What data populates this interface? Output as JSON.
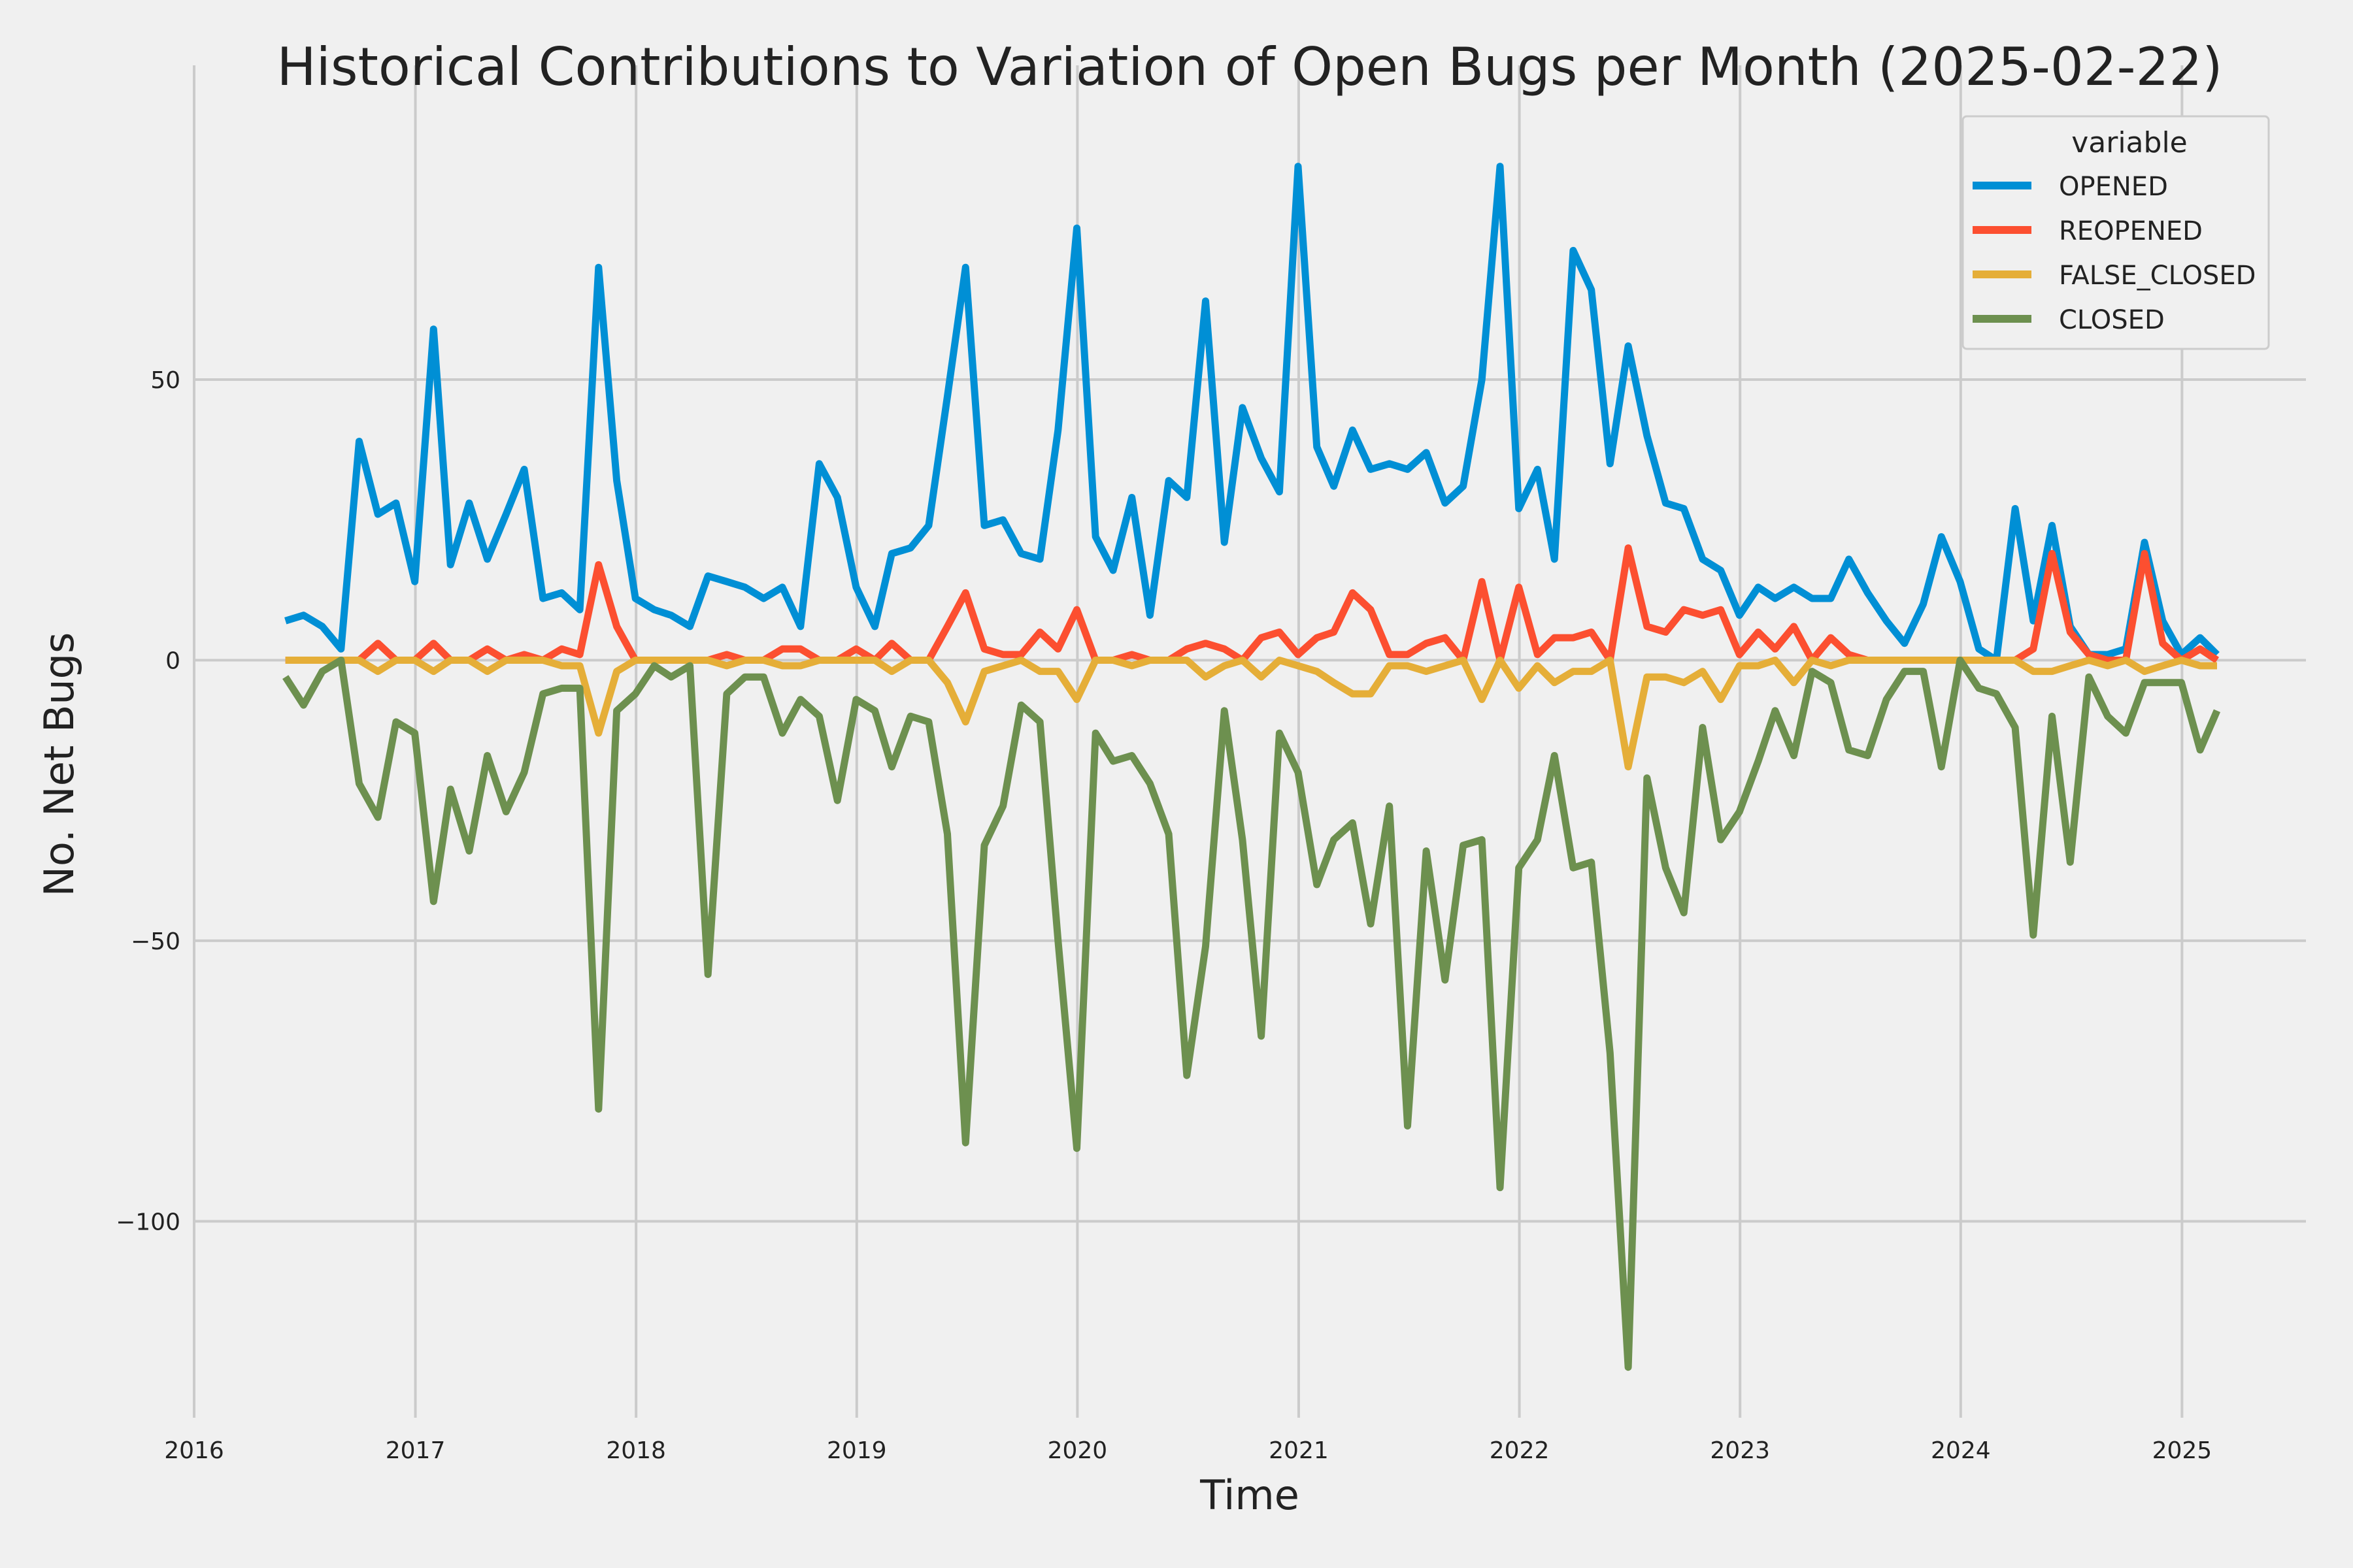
{
  "chart_data": {
    "type": "line",
    "title": "Historical Contributions to Variation of Open Bugs per Month (2025-02-22)",
    "xlabel": "Time",
    "ylabel": "No. Net Bugs",
    "x_ticks": [
      "2016",
      "2017",
      "2018",
      "2019",
      "2020",
      "2021",
      "2022",
      "2023",
      "2024",
      "2025"
    ],
    "y_ticks": [
      {
        "value": 50,
        "label": "50"
      },
      {
        "value": 0,
        "label": "0"
      },
      {
        "value": -50,
        "label": "−50"
      },
      {
        "value": -100,
        "label": "−100"
      }
    ],
    "xlim": [
      "2016-01-01",
      "2025-07-25"
    ],
    "ylim": [
      -135,
      106
    ],
    "grid": true,
    "legend": {
      "title": "variable",
      "placement": "top-right"
    },
    "x": [
      "2016-05",
      "2016-06",
      "2016-07",
      "2016-08",
      "2016-09",
      "2016-10",
      "2016-11",
      "2016-12",
      "2017-01",
      "2017-02",
      "2017-03",
      "2017-04",
      "2017-05",
      "2017-06",
      "2017-07",
      "2017-08",
      "2017-09",
      "2017-10",
      "2017-11",
      "2017-12",
      "2018-01",
      "2018-02",
      "2018-03",
      "2018-04",
      "2018-05",
      "2018-06",
      "2018-07",
      "2018-08",
      "2018-09",
      "2018-10",
      "2018-11",
      "2018-12",
      "2019-01",
      "2019-02",
      "2019-03",
      "2019-04",
      "2019-05",
      "2019-06",
      "2019-07",
      "2019-08",
      "2019-09",
      "2019-10",
      "2019-11",
      "2019-12",
      "2020-01",
      "2020-02",
      "2020-03",
      "2020-04",
      "2020-05",
      "2020-06",
      "2020-07",
      "2020-08",
      "2020-09",
      "2020-10",
      "2020-11",
      "2020-12",
      "2021-01",
      "2021-02",
      "2021-03",
      "2021-04",
      "2021-05",
      "2021-06",
      "2021-07",
      "2021-08",
      "2021-09",
      "2021-10",
      "2021-11",
      "2021-12",
      "2022-01",
      "2022-02",
      "2022-03",
      "2022-04",
      "2022-05",
      "2022-06",
      "2022-07",
      "2022-08",
      "2022-09",
      "2022-10",
      "2022-11",
      "2022-12",
      "2023-01",
      "2023-02",
      "2023-03",
      "2023-04",
      "2023-05",
      "2023-06",
      "2023-07",
      "2023-08",
      "2023-09",
      "2023-10",
      "2023-11",
      "2023-12",
      "2024-01",
      "2024-02",
      "2024-03",
      "2024-04",
      "2024-05",
      "2024-06",
      "2024-07",
      "2024-08",
      "2024-09",
      "2024-10",
      "2024-11",
      "2024-12",
      "2025-01",
      "2025-02"
    ],
    "series": [
      {
        "name": "OPENED",
        "color": "#008fd5",
        "values": [
          7,
          8,
          6,
          2,
          39,
          26,
          28,
          14,
          59,
          17,
          28,
          18,
          26,
          34,
          11,
          12,
          9,
          70,
          32,
          11,
          9,
          8,
          6,
          15,
          14,
          13,
          11,
          13,
          6,
          35,
          29,
          13,
          6,
          19,
          20,
          24,
          47,
          70,
          24,
          25,
          19,
          18,
          41,
          77,
          22,
          16,
          29,
          8,
          32,
          29,
          64,
          21,
          45,
          36,
          30,
          88,
          38,
          31,
          41,
          34,
          35,
          34,
          37,
          28,
          31,
          50,
          88,
          27,
          34,
          18,
          73,
          66,
          35,
          56,
          40,
          28,
          27,
          18,
          16,
          8,
          13,
          11,
          13,
          11,
          11,
          18,
          12,
          7,
          3,
          10,
          22,
          14,
          2,
          0,
          27,
          7,
          24,
          6,
          1,
          1,
          2,
          21,
          7,
          1,
          4,
          1
        ]
      },
      {
        "name": "REOPENED",
        "color": "#fc4f30",
        "values": [
          0,
          0,
          0,
          0,
          0,
          3,
          0,
          0,
          3,
          0,
          0,
          2,
          0,
          1,
          0,
          2,
          1,
          17,
          6,
          0,
          0,
          0,
          0,
          0,
          1,
          0,
          0,
          2,
          2,
          0,
          0,
          2,
          0,
          3,
          0,
          0,
          6,
          12,
          2,
          1,
          1,
          5,
          2,
          9,
          0,
          0,
          1,
          0,
          0,
          2,
          3,
          2,
          0,
          4,
          5,
          1,
          4,
          5,
          12,
          9,
          1,
          1,
          3,
          4,
          0,
          14,
          0,
          13,
          1,
          4,
          4,
          5,
          0,
          20,
          6,
          5,
          9,
          8,
          9,
          1,
          5,
          2,
          6,
          0,
          4,
          1,
          0,
          0,
          0,
          0,
          0,
          0,
          0,
          0,
          0,
          2,
          19,
          5,
          1,
          0,
          0,
          19,
          3,
          0,
          2,
          0
        ]
      },
      {
        "name": "FALSE_CLOSED",
        "color": "#e5ae38",
        "values": [
          0,
          0,
          0,
          0,
          0,
          -2,
          0,
          0,
          -2,
          0,
          0,
          -2,
          0,
          0,
          0,
          -1,
          -1,
          -13,
          -2,
          0,
          0,
          0,
          0,
          0,
          -1,
          0,
          0,
          -1,
          -1,
          0,
          0,
          0,
          0,
          -2,
          0,
          0,
          -4,
          -11,
          -2,
          -1,
          0,
          -2,
          -2,
          -7,
          0,
          0,
          -1,
          0,
          0,
          0,
          -3,
          -1,
          0,
          -3,
          0,
          -1,
          -2,
          -4,
          -6,
          -6,
          -1,
          -1,
          -2,
          -1,
          0,
          -7,
          0,
          -5,
          -1,
          -4,
          -2,
          -2,
          0,
          -19,
          -3,
          -3,
          -4,
          -2,
          -7,
          -1,
          -1,
          0,
          -4,
          0,
          -1,
          0,
          0,
          0,
          0,
          0,
          0,
          0,
          0,
          0,
          0,
          -2,
          -2,
          -1,
          0,
          -1,
          0,
          -2,
          -1,
          0,
          -1,
          -1
        ]
      },
      {
        "name": "CLOSED",
        "color": "#6d904f",
        "values": [
          -3,
          -8,
          -2,
          0,
          -22,
          -28,
          -11,
          -13,
          -43,
          -23,
          -34,
          -17,
          -27,
          -20,
          -6,
          -5,
          -5,
          -80,
          -9,
          -6,
          -1,
          -3,
          -1,
          -56,
          -6,
          -3,
          -3,
          -13,
          -7,
          -10,
          -25,
          -7,
          -9,
          -19,
          -10,
          -11,
          -31,
          -86,
          -33,
          -26,
          -8,
          -11,
          -50,
          -87,
          -13,
          -18,
          -17,
          -22,
          -31,
          -74,
          -51,
          -9,
          -32,
          -67,
          -13,
          -20,
          -40,
          -32,
          -29,
          -47,
          -26,
          -83,
          -34,
          -57,
          -33,
          -32,
          -94,
          -37,
          -32,
          -17,
          -37,
          -36,
          -70,
          -126,
          -21,
          -37,
          -45,
          -12,
          -32,
          -27,
          -18,
          -9,
          -17,
          -2,
          -4,
          -16,
          -17,
          -7,
          -2,
          -2,
          -19,
          0,
          -5,
          -6,
          -12,
          -49,
          -10,
          -36,
          -3,
          -10,
          -13,
          -4,
          -4,
          -4,
          -16,
          -9
        ]
      }
    ]
  }
}
